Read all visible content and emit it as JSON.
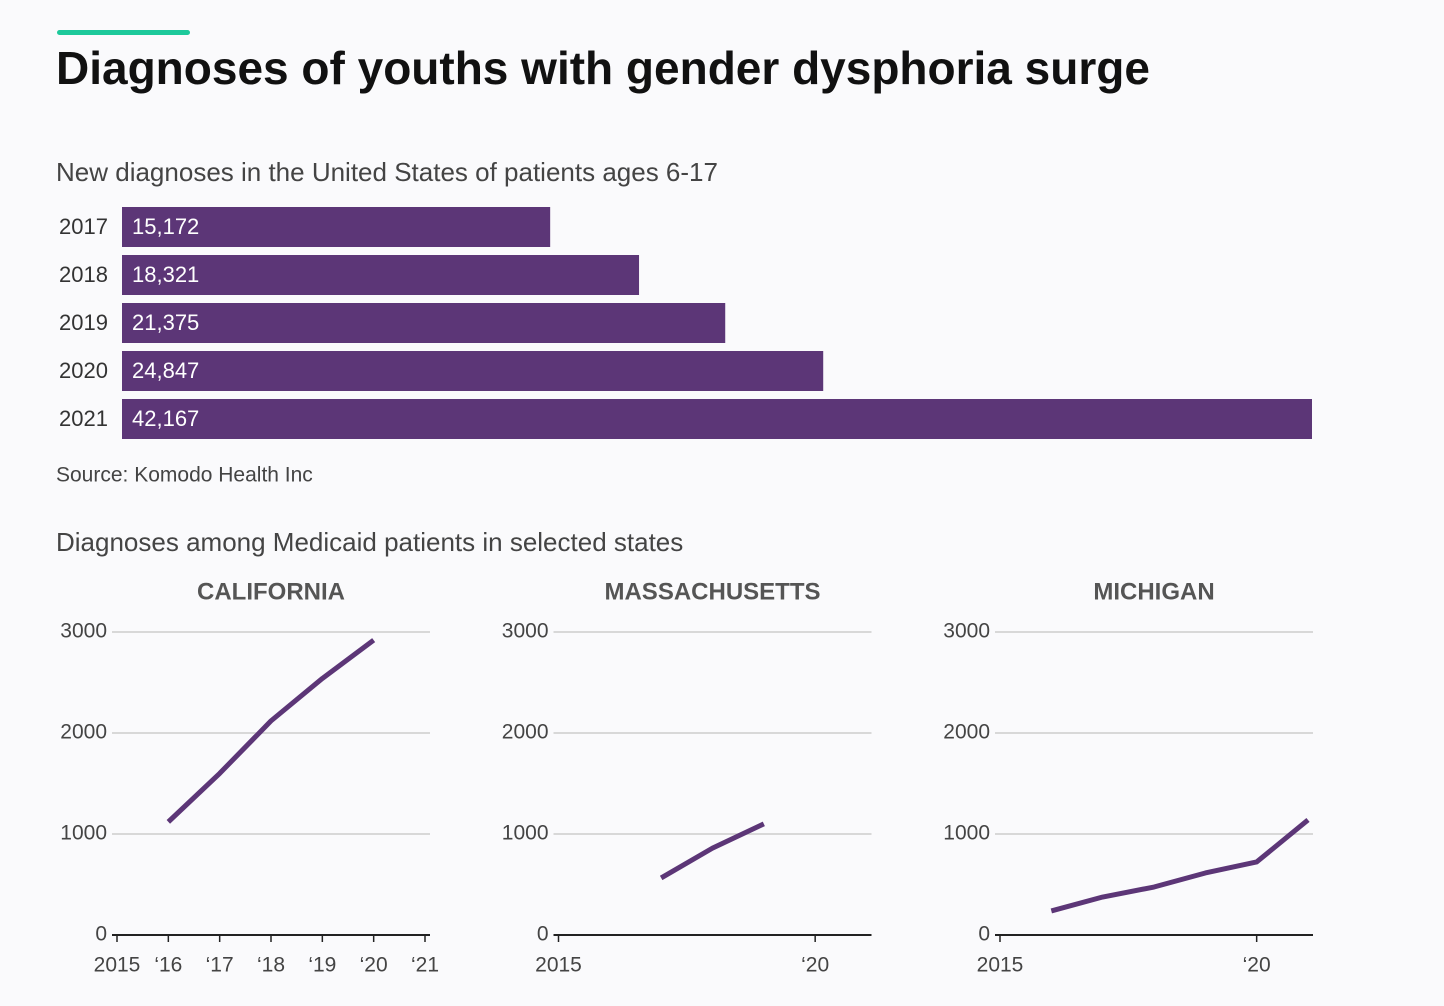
{
  "title": "Diagnoses of youths with gender dysphoria surge",
  "chart_data": [
    {
      "type": "bar",
      "title": "New diagnoses in the United States of patients ages 6-17",
      "source": "Source: Komodo Health Inc",
      "categories": [
        "2017",
        "2018",
        "2019",
        "2020",
        "2021"
      ],
      "values": [
        15172,
        18321,
        21375,
        24847,
        42167
      ],
      "value_labels": [
        "15,172",
        "18,321",
        "21,375",
        "24,847",
        "42,167"
      ],
      "color": "#5c3677"
    },
    {
      "type": "line",
      "subtitle": "Diagnoses among Medicaid patients in selected states",
      "title": "CALIFORNIA",
      "x": [
        2016,
        2017,
        2018,
        2019,
        2020
      ],
      "values": [
        1120,
        1600,
        2120,
        2540,
        2920
      ],
      "color": "#5c3677",
      "xlim": [
        2015,
        2021
      ],
      "xticks": [
        2015,
        {
          "value": 2016,
          "label": "‘16"
        },
        {
          "value": 2017,
          "label": "‘17"
        },
        {
          "value": 2018,
          "label": "‘18"
        },
        {
          "value": 2019,
          "label": "‘19"
        },
        {
          "value": 2020,
          "label": "‘20"
        },
        {
          "value": 2021,
          "label": "‘21"
        }
      ],
      "ylim": [
        0,
        3000
      ],
      "yticks": [
        0,
        1000,
        2000,
        3000
      ],
      "grid": true
    },
    {
      "type": "line",
      "title": "MASSACHUSETTS",
      "x": [
        2017,
        2018,
        2019
      ],
      "values": [
        565,
        860,
        1100
      ],
      "color": "#5c3677",
      "xlim": [
        2015,
        2021
      ],
      "xticks": [
        2015,
        {
          "value": 2020,
          "label": "‘20"
        }
      ],
      "ylim": [
        0,
        3000
      ],
      "yticks": [
        0,
        1000,
        2000,
        3000
      ],
      "grid": true
    },
    {
      "type": "line",
      "title": "MICHIGAN",
      "x": [
        2016,
        2017,
        2018,
        2019,
        2020,
        2021
      ],
      "values": [
        238,
        376,
        475,
        614,
        723,
        1139
      ],
      "color": "#5c3677",
      "xlim": [
        2015,
        2021
      ],
      "xticks": [
        2015,
        {
          "value": 2020,
          "label": "‘20"
        }
      ],
      "ylim": [
        0,
        3000
      ],
      "yticks": [
        0,
        1000,
        2000,
        3000
      ],
      "grid": true
    }
  ]
}
